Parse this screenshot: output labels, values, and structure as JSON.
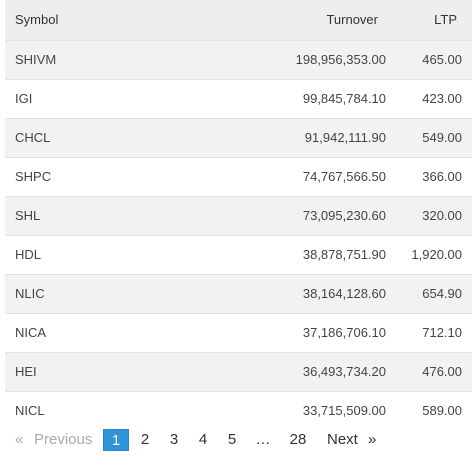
{
  "table": {
    "headers": {
      "symbol": "Symbol",
      "turnover": "Turnover",
      "ltp": "LTP"
    },
    "rows": [
      {
        "symbol": "SHIVM",
        "turnover": "198,956,353.00",
        "ltp": "465.00"
      },
      {
        "symbol": "IGI",
        "turnover": "99,845,784.10",
        "ltp": "423.00"
      },
      {
        "symbol": "CHCL",
        "turnover": "91,942,111.90",
        "ltp": "549.00"
      },
      {
        "symbol": "SHPC",
        "turnover": "74,767,566.50",
        "ltp": "366.00"
      },
      {
        "symbol": "SHL",
        "turnover": "73,095,230.60",
        "ltp": "320.00"
      },
      {
        "symbol": "HDL",
        "turnover": "38,878,751.90",
        "ltp": "1,920.00"
      },
      {
        "symbol": "NLIC",
        "turnover": "38,164,128.60",
        "ltp": "654.90"
      },
      {
        "symbol": "NICA",
        "turnover": "37,186,706.10",
        "ltp": "712.10"
      },
      {
        "symbol": "HEI",
        "turnover": "36,493,734.20",
        "ltp": "476.00"
      },
      {
        "symbol": "NICL",
        "turnover": "33,715,509.00",
        "ltp": "589.00"
      }
    ]
  },
  "pagination": {
    "prev_arrow": "«",
    "prev_label": "Previous",
    "pages": [
      "1",
      "2",
      "3",
      "4",
      "5"
    ],
    "ellipsis": "…",
    "last_page": "28",
    "next_label": "Next",
    "next_arrow": "»",
    "active_page": "1"
  },
  "colors": {
    "active_page_bg": "#3094d6",
    "header_bg": "#eeeeee",
    "row_stripe": "#f2f2f2"
  }
}
